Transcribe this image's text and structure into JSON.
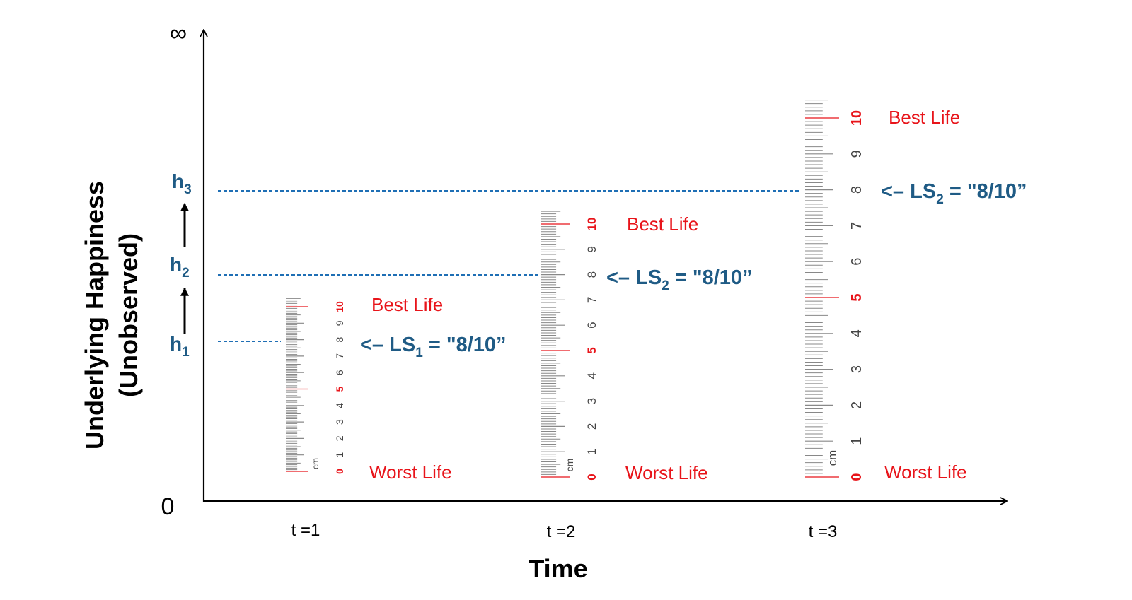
{
  "axes": {
    "y_title_line1": "Underlying Happiness",
    "y_title_line2": "(Unobserved)",
    "y_top_label": "∞",
    "origin_label": "0",
    "x_title": "Time",
    "color": "#000000"
  },
  "times": [
    "t =1",
    "t =2",
    "t =3"
  ],
  "happiness_levels": [
    {
      "letter": "h",
      "sub": "1"
    },
    {
      "letter": "h",
      "sub": "2"
    },
    {
      "letter": "h",
      "sub": "3"
    }
  ],
  "rulers": [
    {
      "time": "t =1",
      "numbers": [
        "0",
        "1",
        "2",
        "3",
        "4",
        "5",
        "6",
        "7",
        "8",
        "9",
        "10"
      ],
      "unit": "cm",
      "best_label": "Best Life",
      "worst_label": "Worst Life",
      "ls_arrow": "<– ",
      "ls_prefix": "LS",
      "ls_sub": "1",
      "ls_value": " = \"8/10”",
      "reported_score": 8
    },
    {
      "time": "t =2",
      "numbers": [
        "0",
        "1",
        "2",
        "3",
        "4",
        "5",
        "6",
        "7",
        "8",
        "9",
        "10"
      ],
      "unit": "cm",
      "best_label": "Best Life",
      "worst_label": "Worst Life",
      "ls_arrow": "<– ",
      "ls_prefix": "LS",
      "ls_sub": "2",
      "ls_value": " = \"8/10”",
      "reported_score": 8
    },
    {
      "time": "t =3",
      "numbers": [
        "0",
        "1",
        "2",
        "3",
        "4",
        "5",
        "6",
        "7",
        "8",
        "9",
        "10"
      ],
      "unit": "cm",
      "best_label": "Best Life",
      "worst_label": "Worst Life",
      "ls_arrow": "<– ",
      "ls_prefix": "LS",
      "ls_sub": "2",
      "ls_value": " = \"8/10”",
      "reported_score": 8
    }
  ],
  "colors": {
    "happiness_blue": "#1f5b85",
    "dashed_line": "#1f6fb5",
    "anchor_red": "#e8141a",
    "ruler_ticks": "#888888"
  }
}
